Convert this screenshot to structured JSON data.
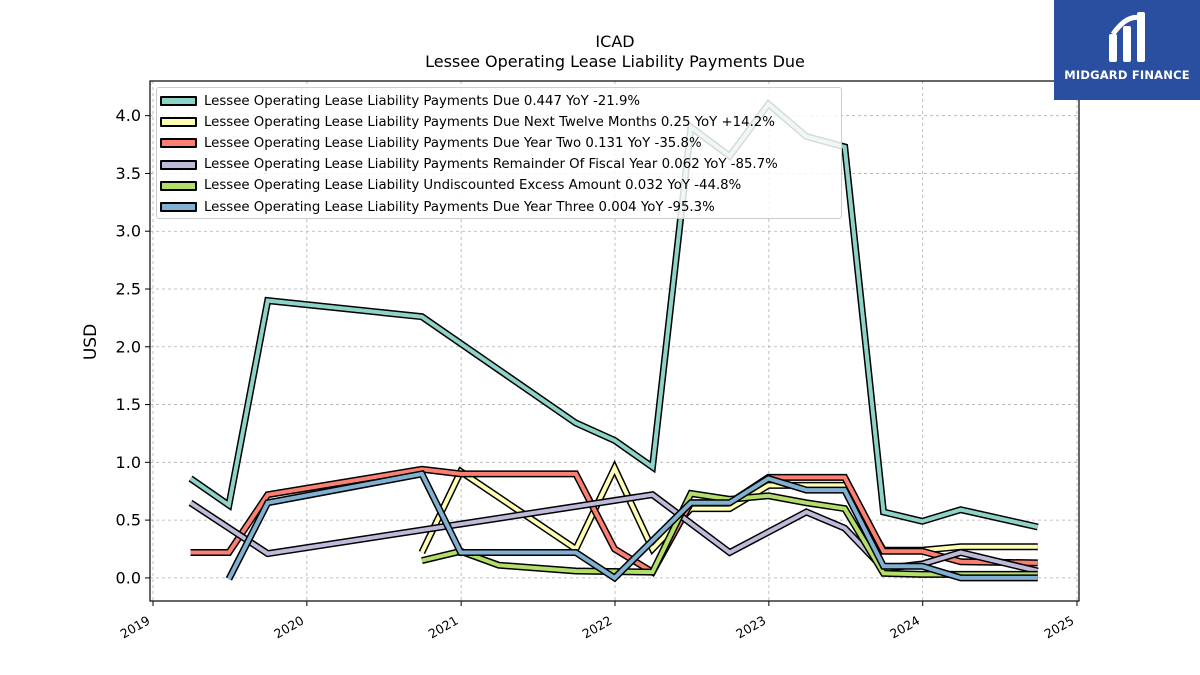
{
  "chart_data": {
    "type": "line",
    "title": "ICAD",
    "subtitle": "Lessee Operating Lease Liability Payments Due",
    "xlabel": "",
    "ylabel": "USD",
    "xlim": [
      "2019-01-01",
      "2025-01-01"
    ],
    "ylim": [
      -0.2,
      4.3
    ],
    "x_ticks": [
      "2019",
      "2020",
      "2021",
      "2022",
      "2023",
      "2024",
      "2025"
    ],
    "y_ticks": [
      "0.0",
      "0.5",
      "1.0",
      "1.5",
      "2.0",
      "2.5",
      "3.0",
      "3.5",
      "4.0"
    ],
    "grid": true,
    "legend_position": "top-left",
    "series": [
      {
        "name": "Lessee Operating Lease Liability Payments Due  0.447 YoY -21.9%",
        "color": "#8dd3c7",
        "points": [
          [
            "2019-03-31",
            0.86
          ],
          [
            "2019-06-30",
            0.63
          ],
          [
            "2019-09-30",
            2.4
          ],
          [
            "2020-09-30",
            2.26
          ],
          [
            "2021-09-30",
            1.34
          ],
          [
            "2021-12-31",
            1.19
          ],
          [
            "2022-03-31",
            0.96
          ],
          [
            "2022-06-30",
            3.9
          ],
          [
            "2022-09-30",
            3.65
          ],
          [
            "2022-12-31",
            4.1
          ],
          [
            "2023-03-31",
            3.82
          ],
          [
            "2023-06-30",
            3.73
          ],
          [
            "2023-09-30",
            0.57
          ],
          [
            "2023-12-31",
            0.49
          ],
          [
            "2024-03-31",
            0.59
          ],
          [
            "2024-09-30",
            0.44
          ]
        ]
      },
      {
        "name": "Lessee Operating Lease Liability Payments Due Next Twelve Months  0.25 YoY +14.2%",
        "color": "#ffffb3",
        "points": [
          [
            "2020-09-30",
            0.22
          ],
          [
            "2020-12-31",
            0.92
          ],
          [
            "2021-09-30",
            0.25
          ],
          [
            "2021-12-31",
            0.95
          ],
          [
            "2022-03-31",
            0.25
          ],
          [
            "2022-06-30",
            0.6
          ],
          [
            "2022-09-30",
            0.6
          ],
          [
            "2022-12-31",
            0.8
          ],
          [
            "2023-03-31",
            0.8
          ],
          [
            "2023-06-30",
            0.8
          ],
          [
            "2023-09-30",
            0.24
          ],
          [
            "2023-12-31",
            0.24
          ],
          [
            "2024-03-31",
            0.27
          ],
          [
            "2024-09-30",
            0.27
          ]
        ]
      },
      {
        "name": "Lessee Operating Lease Liability Payments Due Year Two  0.131 YoY -35.8%",
        "color": "#fb8072",
        "points": [
          [
            "2019-03-31",
            0.22
          ],
          [
            "2019-06-30",
            0.22
          ],
          [
            "2019-09-30",
            0.72
          ],
          [
            "2020-09-30",
            0.94
          ],
          [
            "2020-12-31",
            0.9
          ],
          [
            "2021-09-30",
            0.9
          ],
          [
            "2021-12-31",
            0.25
          ],
          [
            "2022-03-31",
            0.05
          ],
          [
            "2022-06-30",
            0.65
          ],
          [
            "2022-09-30",
            0.65
          ],
          [
            "2022-12-31",
            0.87
          ],
          [
            "2023-03-31",
            0.87
          ],
          [
            "2023-06-30",
            0.87
          ],
          [
            "2023-09-30",
            0.23
          ],
          [
            "2023-12-31",
            0.23
          ],
          [
            "2024-03-31",
            0.14
          ],
          [
            "2024-09-30",
            0.13
          ]
        ]
      },
      {
        "name": "Lessee Operating Lease Liability Payments Remainder Of Fiscal Year  0.062 YoY -85.7%",
        "color": "#bebada",
        "points": [
          [
            "2019-03-31",
            0.65
          ],
          [
            "2019-09-30",
            0.21
          ],
          [
            "2022-03-31",
            0.72
          ],
          [
            "2022-09-30",
            0.22
          ],
          [
            "2023-03-31",
            0.57
          ],
          [
            "2023-06-30",
            0.43
          ],
          [
            "2023-09-30",
            0.08
          ],
          [
            "2023-12-31",
            0.12
          ],
          [
            "2024-03-31",
            0.22
          ],
          [
            "2024-09-30",
            0.06
          ]
        ]
      },
      {
        "name": "Lessee Operating Lease Liability Undiscounted Excess Amount  0.032 YoY -44.8%",
        "color": "#b3de69",
        "points": [
          [
            "2020-09-30",
            0.15
          ],
          [
            "2020-12-31",
            0.23
          ],
          [
            "2021-03-31",
            0.11
          ],
          [
            "2021-09-30",
            0.06
          ],
          [
            "2022-03-31",
            0.05
          ],
          [
            "2022-06-30",
            0.73
          ],
          [
            "2022-09-30",
            0.68
          ],
          [
            "2022-12-31",
            0.71
          ],
          [
            "2023-03-31",
            0.65
          ],
          [
            "2023-06-30",
            0.6
          ],
          [
            "2023-09-30",
            0.04
          ],
          [
            "2023-12-31",
            0.03
          ],
          [
            "2024-03-31",
            0.03
          ],
          [
            "2024-09-30",
            0.03
          ]
        ]
      },
      {
        "name": "Lessee Operating Lease Liability Payments Due Year Three  0.004 YoY -95.3%",
        "color": "#80b1d3",
        "points": [
          [
            "2019-06-30",
            -0.01
          ],
          [
            "2019-09-30",
            0.65
          ],
          [
            "2020-09-30",
            0.9
          ],
          [
            "2020-12-31",
            0.22
          ],
          [
            "2021-09-30",
            0.22
          ],
          [
            "2021-12-31",
            0.0
          ],
          [
            "2022-06-30",
            0.65
          ],
          [
            "2022-09-30",
            0.65
          ],
          [
            "2022-12-31",
            0.86
          ],
          [
            "2023-03-31",
            0.76
          ],
          [
            "2023-06-30",
            0.76
          ],
          [
            "2023-09-30",
            0.1
          ],
          [
            "2023-12-31",
            0.1
          ],
          [
            "2024-03-31",
            0.0
          ],
          [
            "2024-09-30",
            0.0
          ]
        ]
      }
    ]
  },
  "logo": {
    "text": "MIDGARD FINANCE",
    "background": "#2a4fa0"
  }
}
